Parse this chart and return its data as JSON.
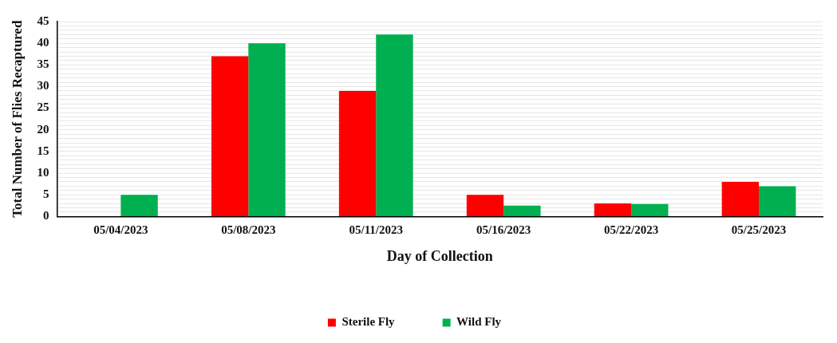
{
  "chart_data": {
    "type": "bar",
    "xlabel": "Day of Collection",
    "ylabel": "Total Number of Flies Recaptured",
    "categories": [
      "05/04/2023",
      "05/08/2023",
      "05/11/2023",
      "05/16/2023",
      "05/22/2023",
      "05/25/2023"
    ],
    "series": [
      {
        "name": "Sterile Fly",
        "color": "#ff0000",
        "values": [
          0,
          37,
          29,
          5,
          3,
          8
        ]
      },
      {
        "name": "Wild Fly",
        "color": "#00b050",
        "values": [
          5,
          40,
          42,
          2.5,
          2.9,
          7
        ]
      }
    ],
    "ylim": [
      0,
      45
    ],
    "yticks": [
      0,
      {
        "value": 1,
        "label": null
      },
      {
        "value": 2,
        "label": null
      },
      {
        "value": 3,
        "label": null
      },
      {
        "value": 4,
        "label": null
      },
      5,
      {
        "value": 6,
        "label": null
      },
      {
        "value": 7,
        "label": null
      },
      {
        "value": 8,
        "label": null
      },
      {
        "value": 9,
        "label": null
      },
      10,
      {
        "value": 11,
        "label": null
      },
      {
        "value": 12,
        "label": null
      },
      {
        "value": 13,
        "label": null
      },
      {
        "value": 14,
        "label": null
      },
      15,
      {
        "value": 16,
        "label": null
      },
      {
        "value": 17,
        "label": null
      },
      {
        "value": 18,
        "label": null
      },
      {
        "value": 19,
        "label": null
      },
      20,
      {
        "value": 21,
        "label": null
      },
      {
        "value": 22,
        "label": null
      },
      {
        "value": 23,
        "label": null
      },
      {
        "value": 24,
        "label": null
      },
      25,
      {
        "value": 26,
        "label": null
      },
      {
        "value": 27,
        "label": null
      },
      {
        "value": 28,
        "label": null
      },
      {
        "value": 29,
        "label": null
      },
      30,
      {
        "value": 31,
        "label": null
      },
      {
        "value": 32,
        "label": null
      },
      {
        "value": 33,
        "label": null
      },
      {
        "value": 34,
        "label": null
      },
      35,
      {
        "value": 36,
        "label": null
      },
      {
        "value": 37,
        "label": null
      },
      {
        "value": 38,
        "label": null
      },
      {
        "value": 39,
        "label": null
      },
      40,
      {
        "value": 41,
        "label": null
      },
      {
        "value": 42,
        "label": null
      },
      {
        "value": 43,
        "label": null
      },
      {
        "value": 44,
        "label": null
      },
      45
    ],
    "grid": "y",
    "legend": "bottom"
  }
}
